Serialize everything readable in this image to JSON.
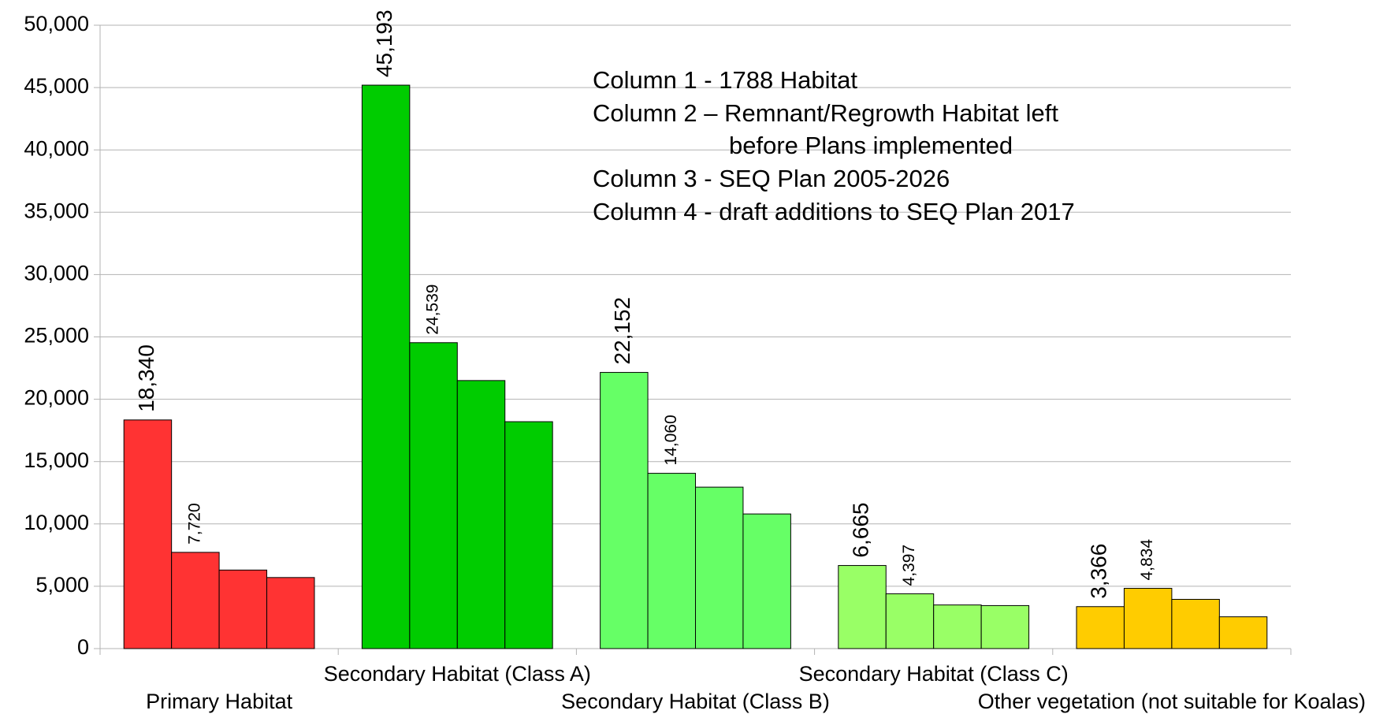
{
  "chart_data": {
    "type": "bar",
    "categories": [
      "Primary Habitat",
      "Secondary Habitat (Class A)",
      "Secondary Habitat (Class B)",
      "Secondary Habitat (Class C)",
      "Other vegetation (not suitable for Koalas)"
    ],
    "colors": [
      "#ff3333",
      "#00cc00",
      "#66ff66",
      "#99ff66",
      "#ffcc00"
    ],
    "series": [
      {
        "values": [
          18340,
          45193,
          22152,
          6665,
          3366
        ],
        "value_labels": [
          "18,340",
          "45,193",
          "22,152",
          "6,665",
          "3,366"
        ]
      },
      {
        "values": [
          7720,
          24539,
          14060,
          4397,
          4834
        ],
        "value_labels": [
          "7,720",
          "24,539",
          "14,060",
          "4,397",
          "4,834"
        ]
      },
      {
        "values": [
          6300,
          21500,
          12950,
          3500,
          3950
        ]
      },
      {
        "values": [
          5700,
          18200,
          10800,
          3450,
          2550
        ]
      }
    ],
    "ylim": [
      0,
      50000
    ],
    "yticks": [
      0,
      {
        "value": 5000,
        "label": "5,000"
      },
      {
        "value": 10000,
        "label": "10,000"
      },
      {
        "value": 15000,
        "label": "15,000"
      },
      {
        "value": 20000,
        "label": "20,000"
      },
      {
        "value": 25000,
        "label": "25,000"
      },
      {
        "value": 30000,
        "label": "30,000"
      },
      {
        "value": 35000,
        "label": "35,000"
      },
      {
        "value": 40000,
        "label": "40,000"
      },
      {
        "value": 45000,
        "label": "45,000"
      },
      {
        "value": 50000,
        "label": "50,000"
      }
    ],
    "grid": true,
    "annotations": [
      "Column 1 - 1788 Habitat",
      "Column 2 – Remnant/Regrowth Habitat left",
      "before Plans implemented",
      "Column 3 - SEQ Plan 2005-2026",
      "Column 4 - draft additions to SEQ Plan 2017"
    ]
  }
}
